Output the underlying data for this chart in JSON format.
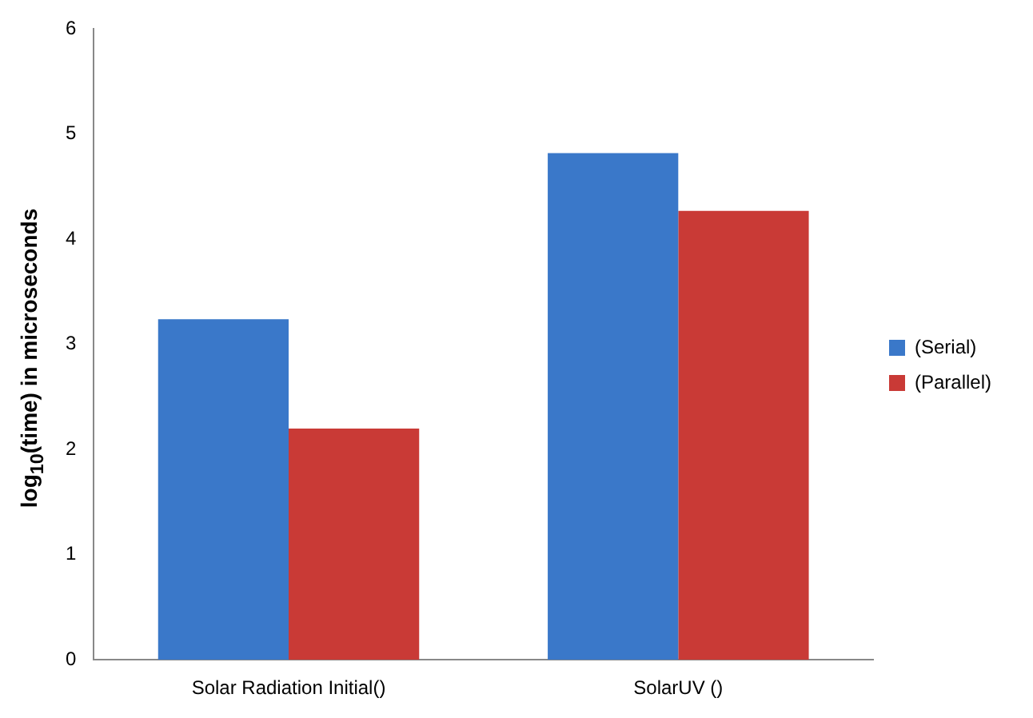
{
  "chart_data": {
    "type": "bar",
    "ylabel": "log$_{10}$(time) in microseconds",
    "categories": [
      "Solar Radiation Initial()",
      "SolarUV ()"
    ],
    "series": [
      {
        "name": "(Serial)",
        "color": "#3a78c9",
        "values": [
          3.24,
          4.82
        ]
      },
      {
        "name": "(Parallel)",
        "color": "#c93a36",
        "values": [
          2.2,
          4.27
        ]
      }
    ],
    "ylim": [
      0,
      6
    ],
    "yticks": [
      0,
      1,
      2,
      3,
      4,
      5,
      6
    ],
    "grid": false,
    "legend": "right"
  }
}
